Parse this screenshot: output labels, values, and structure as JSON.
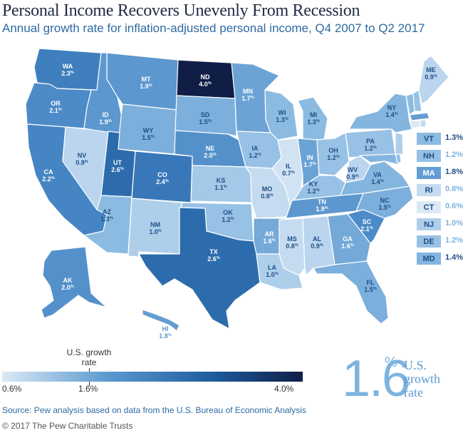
{
  "title": "Personal Income Recovers Unevenly From Recession",
  "subtitle": "Annual growth rate for inflation-adjusted personal income, Q4 2007 to Q2 2017",
  "pct_sign": "%",
  "states": [
    {
      "code": "WA",
      "value": "2.3"
    },
    {
      "code": "OR",
      "value": "2.1"
    },
    {
      "code": "CA",
      "value": "2.2"
    },
    {
      "code": "NV",
      "value": "0.9"
    },
    {
      "code": "ID",
      "value": "1.9"
    },
    {
      "code": "MT",
      "value": "1.9"
    },
    {
      "code": "WY",
      "value": "1.5"
    },
    {
      "code": "UT",
      "value": "2.6"
    },
    {
      "code": "AZ",
      "value": "1.3"
    },
    {
      "code": "CO",
      "value": "2.4"
    },
    {
      "code": "NM",
      "value": "1.0"
    },
    {
      "code": "ND",
      "value": "4.0"
    },
    {
      "code": "SD",
      "value": "1.5"
    },
    {
      "code": "NE",
      "value": "2.0"
    },
    {
      "code": "KS",
      "value": "1.1"
    },
    {
      "code": "OK",
      "value": "1.2"
    },
    {
      "code": "TX",
      "value": "2.6"
    },
    {
      "code": "MN",
      "value": "1.7"
    },
    {
      "code": "IA",
      "value": "1.2"
    },
    {
      "code": "MO",
      "value": "0.8"
    },
    {
      "code": "AR",
      "value": "1.6"
    },
    {
      "code": "LA",
      "value": "1.0"
    },
    {
      "code": "WI",
      "value": "1.3"
    },
    {
      "code": "IL",
      "value": "0.7"
    },
    {
      "code": "MI",
      "value": "1.3"
    },
    {
      "code": "IN",
      "value": "1.7"
    },
    {
      "code": "OH",
      "value": "1.2"
    },
    {
      "code": "KY",
      "value": "1.2"
    },
    {
      "code": "TN",
      "value": "1.9"
    },
    {
      "code": "MS",
      "value": "0.8"
    },
    {
      "code": "AL",
      "value": "0.9"
    },
    {
      "code": "GA",
      "value": "1.6"
    },
    {
      "code": "FL",
      "value": "1.5"
    },
    {
      "code": "SC",
      "value": "2.1"
    },
    {
      "code": "NC",
      "value": "1.5"
    },
    {
      "code": "VA",
      "value": "1.4"
    },
    {
      "code": "WV",
      "value": "0.9"
    },
    {
      "code": "PA",
      "value": "1.2"
    },
    {
      "code": "NY",
      "value": "1.4"
    },
    {
      "code": "ME",
      "value": "0.9"
    },
    {
      "code": "AK",
      "value": "2.0"
    },
    {
      "code": "HI",
      "value": "1.8"
    }
  ],
  "northeast_legend": [
    {
      "code": "VT",
      "value": "1.3%"
    },
    {
      "code": "NH",
      "value": "1.2%"
    },
    {
      "code": "MA",
      "value": "1.8%"
    },
    {
      "code": "RI",
      "value": "0.8%"
    },
    {
      "code": "CT",
      "value": "0.6%"
    },
    {
      "code": "NJ",
      "value": "1.0%"
    },
    {
      "code": "DE",
      "value": "1.2%"
    },
    {
      "code": "MD",
      "value": "1.4%"
    }
  ],
  "scale": {
    "marker_label": "U.S. growth rate",
    "min_label": "0.6%",
    "mid_label": "1.6%",
    "max_label": "4.0%",
    "min": 0.6,
    "max": 4.0,
    "us_rate": 1.6
  },
  "callout": {
    "value": "1.6",
    "pct": "%",
    "label": "U.S. growth rate"
  },
  "source": "Source: Pew analysis based on data from the U.S. Bureau of Economic Analysis",
  "copyright": "© 2017 The Pew Charitable Trusts"
}
